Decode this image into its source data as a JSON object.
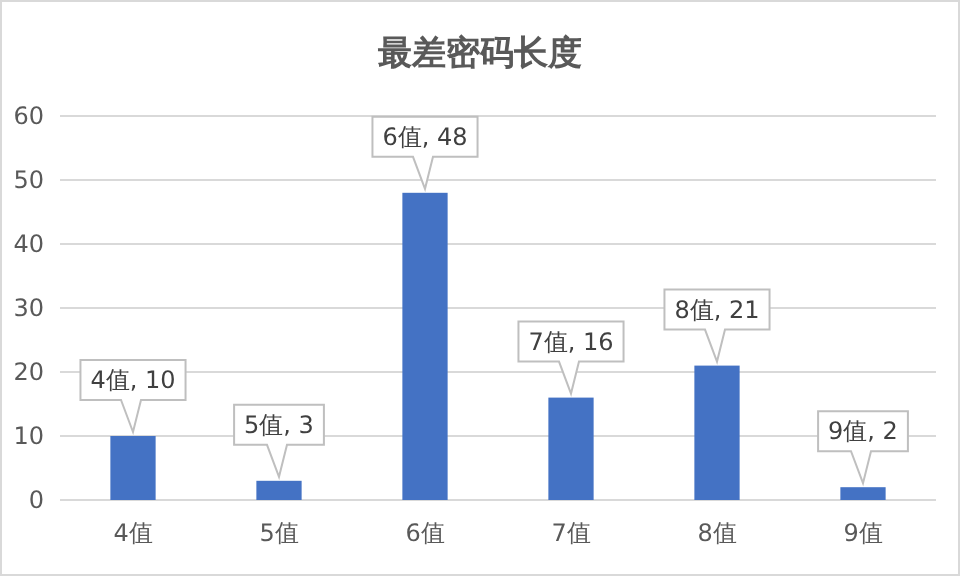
{
  "chart_data": {
    "type": "bar",
    "title": "最差密码长度",
    "categories": [
      "4值",
      "5值",
      "6值",
      "7值",
      "8值",
      "9值"
    ],
    "values": [
      10,
      3,
      48,
      16,
      21,
      2
    ],
    "value_labels": [
      "4值, 10",
      "5值, 3",
      "6值, 48",
      "7值, 16",
      "8值, 21",
      "9值, 2"
    ],
    "color": "#4472c4",
    "ylim": [
      0,
      60
    ],
    "yticks": [
      0,
      10,
      20,
      30,
      40,
      50,
      60
    ],
    "grid": "y"
  }
}
